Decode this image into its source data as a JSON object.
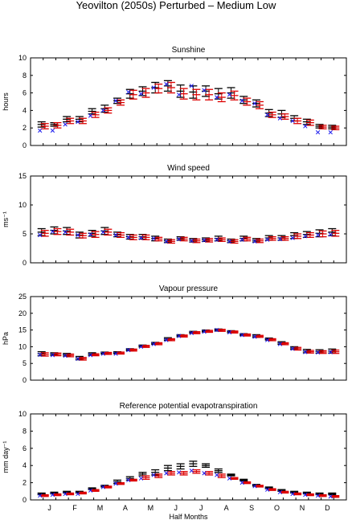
{
  "figure": {
    "title": "Yeovilton (2050s) Perturbed – Medium Low"
  },
  "colors": {
    "black": "#000000",
    "red": "#dd0000",
    "blue": "#1a1aee"
  },
  "chart_data": [
    {
      "type": "scatter",
      "title": "Sunshine",
      "ylabel": "hours",
      "ylim": [
        0,
        10
      ],
      "yticks": [
        "0",
        "2",
        "4",
        "6",
        "8",
        "10"
      ],
      "xtick_labels": [],
      "xlabel": "",
      "black_mean": [
        2.4,
        2.4,
        3.0,
        3.0,
        3.9,
        4.2,
        5.1,
        5.9,
        6.2,
        6.6,
        6.8,
        6.2,
        6.1,
        6.2,
        5.9,
        6.0,
        5.2,
        4.8,
        3.7,
        3.6,
        3.1,
        2.7,
        2.2,
        2.1
      ],
      "black_err": [
        0.3,
        0.2,
        0.3,
        0.3,
        0.3,
        0.4,
        0.3,
        0.5,
        0.5,
        0.6,
        0.6,
        0.7,
        0.7,
        0.6,
        0.6,
        0.6,
        0.4,
        0.4,
        0.4,
        0.4,
        0.3,
        0.3,
        0.2,
        0.2
      ],
      "red_mean": [
        2.2,
        2.3,
        2.8,
        2.8,
        3.5,
        4.0,
        4.9,
        5.8,
        6.0,
        6.5,
        6.6,
        5.9,
        5.8,
        5.8,
        5.5,
        5.7,
        5.0,
        4.6,
        3.5,
        3.3,
        2.8,
        2.6,
        2.1,
        2.0
      ],
      "red_err": [
        0.3,
        0.3,
        0.3,
        0.3,
        0.3,
        0.3,
        0.3,
        0.5,
        0.5,
        0.5,
        0.6,
        0.6,
        0.6,
        0.6,
        0.5,
        0.5,
        0.4,
        0.4,
        0.3,
        0.3,
        0.3,
        0.3,
        0.2,
        0.2
      ],
      "blue": [
        1.7,
        1.7,
        2.4,
        2.7,
        3.4,
        4.0,
        5.1,
        6.1,
        5.9,
        6.6,
        7.0,
        5.8,
        6.8,
        6.3,
        5.5,
        5.8,
        5.1,
        4.8,
        3.5,
        3.1,
        2.8,
        2.2,
        1.5,
        1.5
      ]
    },
    {
      "type": "scatter",
      "title": "Wind speed",
      "ylabel": "ms⁻¹",
      "ylim": [
        0,
        15
      ],
      "yticks": [
        "0",
        "5",
        "10",
        "15"
      ],
      "xtick_labels": [],
      "xlabel": "",
      "black_mean": [
        5.3,
        5.6,
        5.5,
        4.8,
        5.1,
        5.5,
        4.9,
        4.5,
        4.5,
        4.2,
        3.8,
        4.2,
        3.9,
        4.0,
        4.2,
        3.8,
        4.2,
        3.9,
        4.3,
        4.3,
        4.7,
        4.9,
        5.1,
        5.3
      ],
      "black_err": [
        0.6,
        0.6,
        0.6,
        0.5,
        0.5,
        0.6,
        0.4,
        0.4,
        0.4,
        0.4,
        0.3,
        0.3,
        0.3,
        0.3,
        0.4,
        0.3,
        0.4,
        0.3,
        0.4,
        0.4,
        0.5,
        0.5,
        0.6,
        0.6
      ],
      "red_mean": [
        5.1,
        5.4,
        5.3,
        4.7,
        4.9,
        5.3,
        4.8,
        4.4,
        4.4,
        4.1,
        3.7,
        4.1,
        3.8,
        3.9,
        4.0,
        3.7,
        4.1,
        3.8,
        4.2,
        4.2,
        4.6,
        4.8,
        5.0,
        5.1
      ],
      "red_err": [
        0.5,
        0.5,
        0.5,
        0.4,
        0.5,
        0.5,
        0.4,
        0.4,
        0.4,
        0.3,
        0.3,
        0.3,
        0.3,
        0.3,
        0.3,
        0.3,
        0.3,
        0.3,
        0.3,
        0.3,
        0.4,
        0.4,
        0.5,
        0.5
      ],
      "blue": [
        4.8,
        5.4,
        5.3,
        4.8,
        4.9,
        5.3,
        4.8,
        4.4,
        4.3,
        4.2,
        3.7,
        4.1,
        3.8,
        3.9,
        4.0,
        3.7,
        4.0,
        3.7,
        4.0,
        4.1,
        4.3,
        4.6,
        4.8,
        4.9
      ]
    },
    {
      "type": "scatter",
      "title": "Vapour pressure",
      "ylabel": "hPa",
      "ylim": [
        0,
        25
      ],
      "yticks": [
        "0",
        "5",
        "10",
        "15",
        "20",
        "25"
      ],
      "xtick_labels": [],
      "xlabel": "",
      "black_mean": [
        7.9,
        7.8,
        7.6,
        6.6,
        7.8,
        8.1,
        8.2,
        9.1,
        10.2,
        11.0,
        12.3,
        13.3,
        14.3,
        14.7,
        15.0,
        14.5,
        13.6,
        13.2,
        12.3,
        11.1,
        9.6,
        8.7,
        8.6,
        8.7
      ],
      "black_err": [
        0.6,
        0.4,
        0.4,
        0.5,
        0.4,
        0.3,
        0.3,
        0.3,
        0.3,
        0.3,
        0.4,
        0.3,
        0.3,
        0.3,
        0.3,
        0.3,
        0.3,
        0.4,
        0.3,
        0.4,
        0.4,
        0.5,
        0.5,
        0.6
      ],
      "red_mean": [
        7.7,
        7.7,
        7.4,
        6.4,
        7.6,
        8.0,
        8.1,
        9.0,
        10.1,
        10.9,
        12.1,
        13.2,
        14.2,
        14.6,
        14.9,
        14.4,
        13.5,
        13.1,
        12.1,
        10.9,
        9.4,
        8.5,
        8.4,
        8.5
      ],
      "red_err": [
        0.5,
        0.4,
        0.4,
        0.4,
        0.3,
        0.3,
        0.3,
        0.3,
        0.3,
        0.3,
        0.3,
        0.3,
        0.3,
        0.3,
        0.3,
        0.3,
        0.3,
        0.3,
        0.3,
        0.3,
        0.4,
        0.4,
        0.4,
        0.5
      ],
      "blue": [
        7.6,
        7.5,
        7.3,
        6.4,
        7.5,
        7.9,
        7.9,
        9.0,
        10.0,
        10.8,
        12.0,
        13.2,
        14.1,
        14.5,
        15.0,
        14.3,
        13.5,
        13.0,
        12.0,
        10.8,
        9.4,
        8.4,
        8.3,
        8.4
      ]
    },
    {
      "type": "scatter",
      "title": "Reference potential evapotranspiration",
      "ylabel": "mm day⁻¹",
      "ylim": [
        0,
        10
      ],
      "yticks": [
        "0",
        "2",
        "4",
        "6",
        "8",
        "10"
      ],
      "xtick_labels": [
        "J",
        "F",
        "M",
        "A",
        "M",
        "J",
        "J",
        "A",
        "S",
        "O",
        "N",
        "D"
      ],
      "xlabel": "Half Months",
      "black_mean": [
        0.7,
        0.8,
        0.9,
        0.9,
        1.3,
        1.6,
        2.1,
        2.5,
        3.0,
        3.2,
        3.7,
        3.9,
        4.2,
        4.0,
        3.4,
        2.9,
        2.3,
        1.7,
        1.4,
        1.1,
        0.9,
        0.8,
        0.7,
        0.7
      ],
      "black_err": [
        0.1,
        0.1,
        0.1,
        0.1,
        0.1,
        0.1,
        0.2,
        0.2,
        0.2,
        0.3,
        0.3,
        0.3,
        0.3,
        0.2,
        0.2,
        0.1,
        0.1,
        0.1,
        0.1,
        0.1,
        0.1,
        0.1,
        0.1,
        0.1
      ],
      "red_mean": [
        0.5,
        0.6,
        0.7,
        0.8,
        1.1,
        1.5,
        1.9,
        2.3,
        2.6,
        2.8,
        3.1,
        3.1,
        3.3,
        3.1,
        2.8,
        2.5,
        2.0,
        1.6,
        1.2,
        0.9,
        0.7,
        0.6,
        0.5,
        0.4
      ],
      "red_err": [
        0.1,
        0.1,
        0.1,
        0.1,
        0.1,
        0.1,
        0.1,
        0.1,
        0.2,
        0.2,
        0.2,
        0.2,
        0.2,
        0.2,
        0.2,
        0.1,
        0.1,
        0.1,
        0.1,
        0.1,
        0.1,
        0.1,
        0.1,
        0.1
      ],
      "blue": [
        0.5,
        0.6,
        0.7,
        0.7,
        1.1,
        1.5,
        1.9,
        2.3,
        2.5,
        2.9,
        3.1,
        3.2,
        3.4,
        3.1,
        2.9,
        2.5,
        2.0,
        1.6,
        1.2,
        0.9,
        0.7,
        0.6,
        0.5,
        0.4
      ]
    }
  ]
}
